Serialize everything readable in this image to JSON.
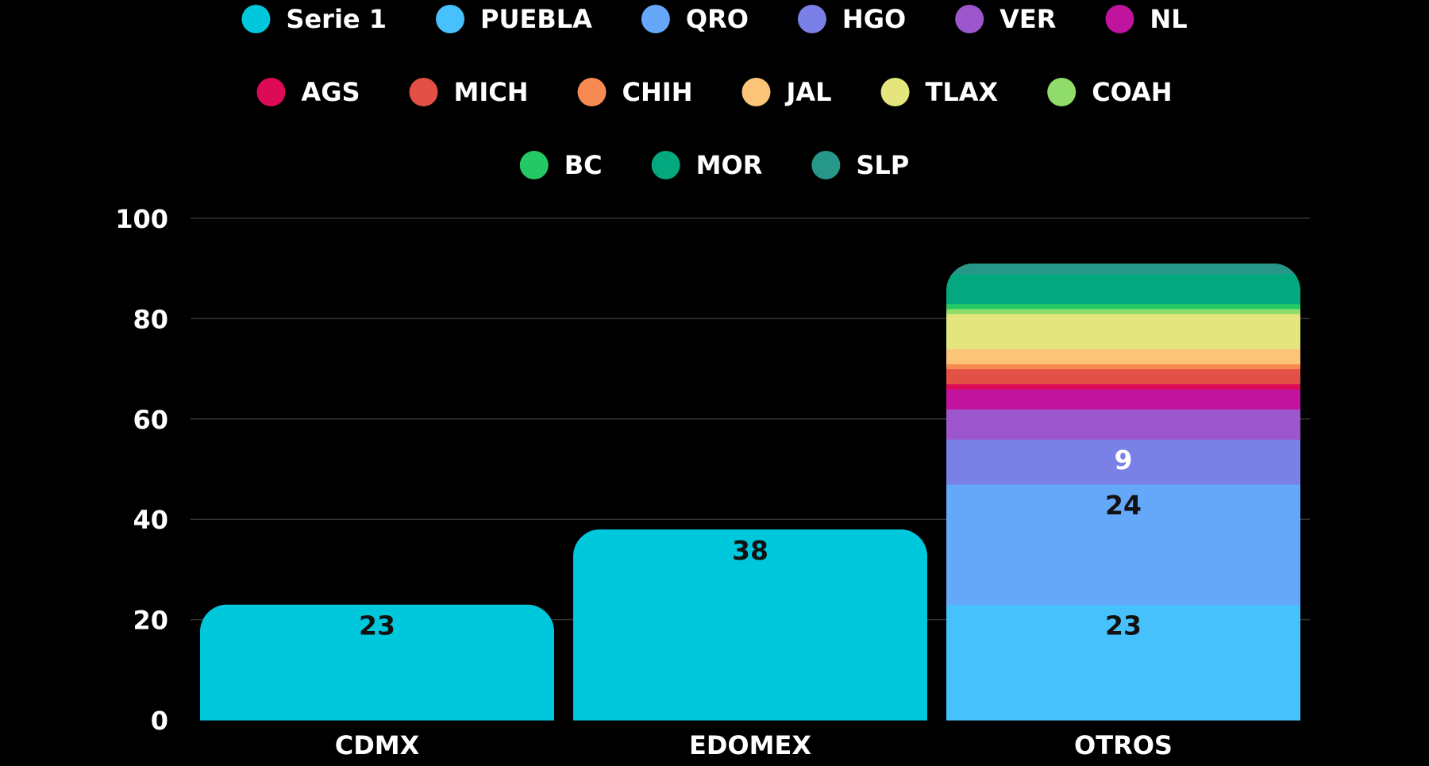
{
  "chart_data": {
    "type": "bar",
    "stacked": true,
    "categories": [
      "CDMX",
      "EDOMEX",
      "OTROS"
    ],
    "ylim": [
      0,
      100
    ],
    "yticks": [
      0,
      20,
      40,
      60,
      80,
      100
    ],
    "grid": true,
    "legend_position": "top",
    "series": [
      {
        "name": "Serie 1",
        "color": "#00c8dc",
        "values": [
          23,
          38,
          0
        ],
        "labels": [
          "23",
          "38",
          ""
        ],
        "label_color": "#111111"
      },
      {
        "name": "PUEBLA",
        "color": "#47c1fb",
        "values": [
          0,
          0,
          23
        ],
        "labels": [
          "",
          "",
          "23"
        ],
        "label_color": "#111111"
      },
      {
        "name": "QRO",
        "color": "#65a7f8",
        "values": [
          0,
          0,
          24
        ],
        "labels": [
          "",
          "",
          "24"
        ],
        "label_color": "#111111"
      },
      {
        "name": "HGO",
        "color": "#7b80e6",
        "values": [
          0,
          0,
          9
        ],
        "labels": [
          "",
          "",
          "9"
        ],
        "label_color": "#ffffff"
      },
      {
        "name": "VER",
        "color": "#9c55ca",
        "values": [
          0,
          0,
          6
        ],
        "labels": [
          "",
          "",
          ""
        ],
        "label_color": "#ffffff"
      },
      {
        "name": "NL",
        "color": "#c0139e",
        "values": [
          0,
          0,
          4
        ],
        "labels": [
          "",
          "",
          ""
        ],
        "label_color": "#ffffff"
      },
      {
        "name": "AGS",
        "color": "#dd0a56",
        "values": [
          0,
          0,
          1
        ],
        "labels": [
          "",
          "",
          ""
        ],
        "label_color": "#ffffff"
      },
      {
        "name": "MICH",
        "color": "#e25046",
        "values": [
          0,
          0,
          3
        ],
        "labels": [
          "",
          "",
          ""
        ],
        "label_color": "#ffffff"
      },
      {
        "name": "CHIH",
        "color": "#f68a50",
        "values": [
          0,
          0,
          1
        ],
        "labels": [
          "",
          "",
          ""
        ],
        "label_color": "#ffffff"
      },
      {
        "name": "JAL",
        "color": "#fcc477",
        "values": [
          0,
          0,
          3
        ],
        "labels": [
          "",
          "",
          ""
        ],
        "label_color": "#111111"
      },
      {
        "name": "TLAX",
        "color": "#e4e57c",
        "values": [
          0,
          0,
          7
        ],
        "labels": [
          "",
          "",
          ""
        ],
        "label_color": "#111111"
      },
      {
        "name": "COAH",
        "color": "#8fdc6a",
        "values": [
          0,
          0,
          1
        ],
        "labels": [
          "",
          "",
          ""
        ],
        "label_color": "#111111"
      },
      {
        "name": "BC",
        "color": "#24c864",
        "values": [
          0,
          0,
          1
        ],
        "labels": [
          "",
          "",
          ""
        ],
        "label_color": "#111111"
      },
      {
        "name": "MOR",
        "color": "#04a87f",
        "values": [
          0,
          0,
          6
        ],
        "labels": [
          "",
          "",
          ""
        ],
        "label_color": "#111111"
      },
      {
        "name": "SLP",
        "color": "#27978a",
        "values": [
          0,
          0,
          2
        ],
        "labels": [
          "",
          "",
          ""
        ],
        "label_color": "#ffffff"
      }
    ]
  }
}
